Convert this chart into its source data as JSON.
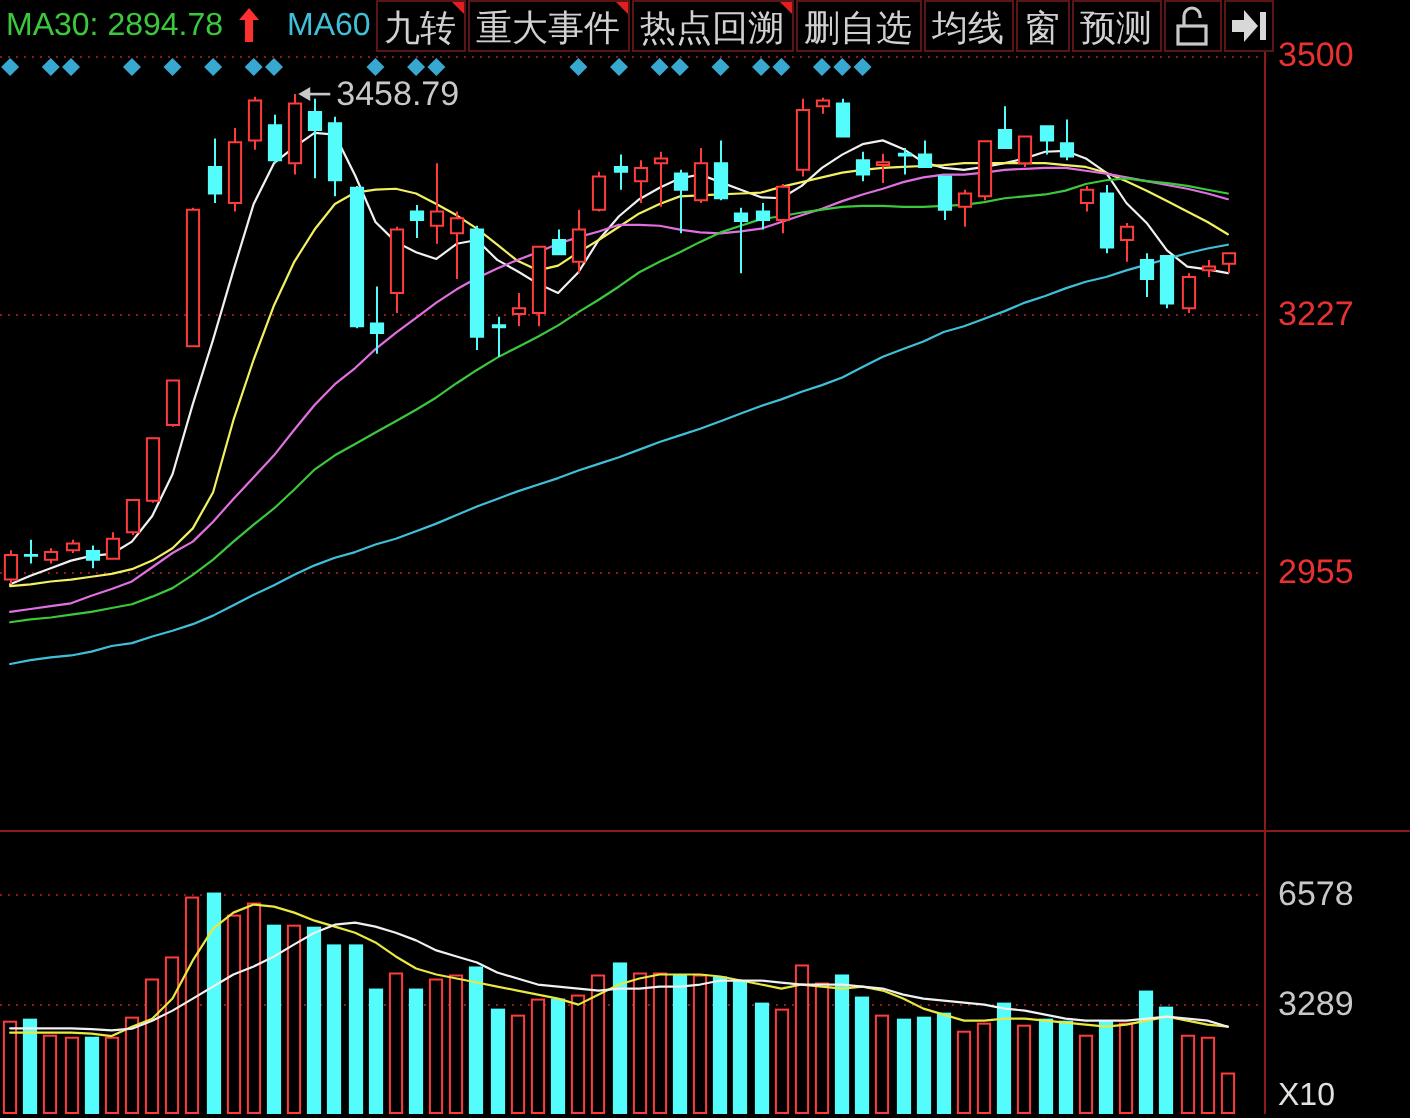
{
  "chart_data": [
    {
      "type": "candlestick",
      "categories": [
        null,
        null,
        null,
        null,
        null,
        null,
        null,
        null,
        null,
        null,
        null,
        null,
        null,
        null,
        null,
        null,
        null,
        null,
        null,
        null,
        null,
        null,
        null,
        null,
        null,
        null,
        null,
        null,
        null,
        null,
        null,
        null,
        null,
        null,
        null,
        null,
        null,
        null,
        null,
        null,
        null,
        null,
        null,
        null,
        null,
        null,
        null,
        null,
        null,
        null,
        null,
        null,
        null,
        null,
        null,
        null,
        null,
        null,
        null,
        null,
        null
      ],
      "ohlc": [
        [
          2947,
          2978,
          2942,
          2973
        ],
        [
          2973,
          2989,
          2964,
          2972
        ],
        [
          2968,
          2980,
          2964,
          2976
        ],
        [
          2978,
          2989,
          2975,
          2985
        ],
        [
          2977,
          2983,
          2959,
          2968
        ],
        [
          2969,
          2997,
          2969,
          2990
        ],
        [
          2997,
          3031,
          2994,
          3031
        ],
        [
          3030,
          3097,
          3028,
          3096
        ],
        [
          3110,
          3158,
          3108,
          3157
        ],
        [
          3193,
          3339,
          3192,
          3337
        ],
        [
          3382,
          3412,
          3344,
          3354
        ],
        [
          3344,
          3423,
          3335,
          3408
        ],
        [
          3410,
          3456,
          3400,
          3452
        ],
        [
          3426,
          3437,
          3386,
          3389
        ],
        [
          3386,
          3458.79,
          3374,
          3449
        ],
        [
          3440,
          3454,
          3370,
          3421
        ],
        [
          3428,
          3435,
          3351,
          3368
        ],
        [
          3360,
          3362,
          3212,
          3214
        ],
        [
          3217,
          3256,
          3185,
          3207
        ],
        [
          3249,
          3319,
          3228,
          3316
        ],
        [
          3335,
          3342,
          3307,
          3326
        ],
        [
          3320,
          3386,
          3301,
          3335
        ],
        [
          3312,
          3335,
          3264,
          3328
        ],
        [
          3316,
          3320,
          3189,
          3203
        ],
        [
          3215,
          3224,
          3182,
          3213
        ],
        [
          3227,
          3249,
          3214,
          3233
        ],
        [
          3228,
          3299,
          3214,
          3298
        ],
        [
          3305,
          3316,
          3289,
          3290
        ],
        [
          3282,
          3337,
          3270,
          3316
        ],
        [
          3337,
          3377,
          3335,
          3372
        ],
        [
          3382,
          3395,
          3358,
          3377
        ],
        [
          3367,
          3389,
          3344,
          3381
        ],
        [
          3386,
          3398,
          3340,
          3391
        ],
        [
          3375,
          3379,
          3312,
          3358
        ],
        [
          3347,
          3402,
          3344,
          3386
        ],
        [
          3386,
          3410,
          3347,
          3349
        ],
        [
          3333,
          3339,
          3270,
          3325
        ],
        [
          3335,
          3344,
          3316,
          3326
        ],
        [
          3326,
          3364,
          3312,
          3361
        ],
        [
          3379,
          3454,
          3372,
          3442
        ],
        [
          3446,
          3455,
          3438,
          3452
        ],
        [
          3449,
          3454,
          3414,
          3414
        ],
        [
          3389,
          3398,
          3367,
          3374
        ],
        [
          3384,
          3396,
          3365,
          3387
        ],
        [
          3396,
          3402,
          3374,
          3394
        ],
        [
          3395,
          3410,
          3382,
          3382
        ],
        [
          3372,
          3373,
          3326,
          3337
        ],
        [
          3340,
          3358,
          3319,
          3354
        ],
        [
          3351,
          3410,
          3347,
          3409
        ],
        [
          3421,
          3446,
          3402,
          3402
        ],
        [
          3386,
          3415,
          3382,
          3414
        ],
        [
          3425,
          3425,
          3395,
          3410
        ],
        [
          3407,
          3432,
          3389,
          3393
        ],
        [
          3344,
          3362,
          3335,
          3358
        ],
        [
          3354,
          3363,
          3291,
          3297
        ],
        [
          3305,
          3323,
          3282,
          3319
        ],
        [
          3284,
          3291,
          3245,
          3264
        ],
        [
          3288,
          3288,
          3233,
          3238
        ],
        [
          3233,
          3270,
          3228,
          3266
        ],
        [
          3273,
          3284,
          3266,
          3277
        ],
        [
          3280,
          3292,
          3270,
          3291
        ]
      ],
      "colors": [
        "#ff3c3c",
        "#54fcfc",
        "#ff3c3c",
        "#ff3c3c",
        "#54fcfc",
        "#ff3c3c",
        "#ff3c3c",
        "#ff3c3c",
        "#ff3c3c",
        "#ff3c3c",
        "#54fcfc",
        "#ff3c3c",
        "#ff3c3c",
        "#54fcfc",
        "#ff3c3c",
        "#54fcfc",
        "#54fcfc",
        "#54fcfc",
        "#54fcfc",
        "#ff3c3c",
        "#54fcfc",
        "#ff3c3c",
        "#ff3c3c",
        "#54fcfc",
        "#54fcfc",
        "#ff3c3c",
        "#ff3c3c",
        "#54fcfc",
        "#ff3c3c",
        "#ff3c3c",
        "#54fcfc",
        "#ff3c3c",
        "#ff3c3c",
        "#54fcfc",
        "#ff3c3c",
        "#54fcfc",
        "#54fcfc",
        "#54fcfc",
        "#ff3c3c",
        "#ff3c3c",
        "#ff3c3c",
        "#54fcfc",
        "#54fcfc",
        "#ff3c3c",
        "#54fcfc",
        "#54fcfc",
        "#54fcfc",
        "#ff3c3c",
        "#ff3c3c",
        "#54fcfc",
        "#ff3c3c",
        "#54fcfc",
        "#54fcfc",
        "#ff3c3c",
        "#54fcfc",
        "#ff3c3c",
        "#54fcfc",
        "#54fcfc",
        "#ff3c3c",
        "#ff3c3c",
        "#ff3c3c"
      ],
      "series": [
        {
          "type": "line",
          "color": "#f0f0f0",
          "values": [
            2942,
            2951,
            2959,
            2967,
            2972,
            2974,
            2987,
            3014,
            3058,
            3132,
            3200,
            3273,
            3343,
            3386,
            3403,
            3418,
            3416,
            3373,
            3324,
            3303,
            3292,
            3285,
            3301,
            3305,
            3284,
            3272,
            3259,
            3249,
            3271,
            3305,
            3330,
            3348,
            3360,
            3370,
            3374,
            3366,
            3358,
            3350,
            3349,
            3362,
            3381,
            3395,
            3406,
            3410,
            3401,
            3387,
            3381,
            3379,
            3382,
            3386,
            3391,
            3398,
            3399,
            3391,
            3376,
            3344,
            3323,
            3294,
            3277,
            3274,
            3270
          ]
        },
        {
          "type": "line",
          "color": "#f0f060",
          "values": [
            2940,
            2942,
            2945,
            2947,
            2950,
            2953,
            2958,
            2967,
            2980,
            3001,
            3039,
            3115,
            3179,
            3236,
            3282,
            3316,
            3343,
            3355,
            3358,
            3359,
            3354,
            3343,
            3331,
            3317,
            3300,
            3283,
            3273,
            3278,
            3292,
            3305,
            3319,
            3333,
            3343,
            3351,
            3352,
            3353,
            3354,
            3355,
            3361,
            3366,
            3371,
            3376,
            3379,
            3381,
            3382,
            3383,
            3384,
            3386,
            3386,
            3386,
            3386,
            3386,
            3384,
            3382,
            3376,
            3367,
            3357,
            3346,
            3335,
            3324,
            3311
          ]
        },
        {
          "type": "line",
          "color": "#e070e0",
          "values": [
            2913,
            2916,
            2919,
            2922,
            2930,
            2937,
            2945,
            2960,
            2975,
            2987,
            3008,
            3032,
            3055,
            3078,
            3105,
            3131,
            3153,
            3170,
            3190,
            3207,
            3223,
            3239,
            3253,
            3265,
            3275,
            3284,
            3292,
            3301,
            3308,
            3314,
            3321,
            3321,
            3320,
            3316,
            3313,
            3312,
            3314,
            3317,
            3324,
            3331,
            3338,
            3346,
            3353,
            3359,
            3366,
            3371,
            3374,
            3374,
            3376,
            3379,
            3380,
            3381,
            3381,
            3378,
            3375,
            3371,
            3367,
            3363,
            3359,
            3354,
            3348
          ]
        },
        {
          "type": "line",
          "name": "MA30: 2894.78",
          "color": "#3cc83c",
          "values": [
            2902,
            2905,
            2907,
            2910,
            2913,
            2917,
            2921,
            2929,
            2938,
            2952,
            2968,
            2987,
            3005,
            3022,
            3042,
            3063,
            3078,
            3090,
            3102,
            3114,
            3126,
            3139,
            3154,
            3168,
            3181,
            3192,
            3203,
            3215,
            3229,
            3242,
            3256,
            3271,
            3282,
            3292,
            3303,
            3313,
            3320,
            3327,
            3330,
            3334,
            3337,
            3340,
            3341,
            3341,
            3340,
            3340,
            3341,
            3342,
            3345,
            3349,
            3351,
            3353,
            3357,
            3364,
            3368,
            3370,
            3367,
            3365,
            3362,
            3358,
            3354
          ]
        },
        {
          "type": "line",
          "name": "MA60",
          "color": "#40c0d8",
          "values": [
            2858,
            2862,
            2865,
            2867,
            2871,
            2877,
            2880,
            2887,
            2893,
            2900,
            2909,
            2920,
            2931,
            2941,
            2952,
            2962,
            2970,
            2976,
            2984,
            2990,
            2998,
            3006,
            3015,
            3024,
            3032,
            3040,
            3047,
            3054,
            3062,
            3069,
            3076,
            3084,
            3092,
            3099,
            3106,
            3114,
            3122,
            3130,
            3137,
            3145,
            3152,
            3160,
            3171,
            3182,
            3190,
            3198,
            3208,
            3214,
            3222,
            3230,
            3239,
            3246,
            3254,
            3261,
            3266,
            3273,
            3279,
            3285,
            3291,
            3296,
            3300
          ]
        }
      ],
      "ylim": [
        2683,
        3558
      ],
      "yticks": [
        3500,
        3227,
        2955
      ],
      "grid": "y",
      "tick_labels": "y",
      "legend": "top left",
      "annotations": [
        "3458.79",
        "九转",
        "重大事件",
        "热点回溯",
        "删自选",
        "均线",
        "窗",
        "预测"
      ]
    },
    {
      "type": "bar",
      "categories": [
        null,
        null,
        null,
        null,
        null,
        null,
        null,
        null,
        null,
        null,
        null,
        null,
        null,
        null,
        null,
        null,
        null,
        null,
        null,
        null,
        null,
        null,
        null,
        null,
        null,
        null,
        null,
        null,
        null,
        null,
        null,
        null,
        null,
        null,
        null,
        null,
        null,
        null,
        null,
        null,
        null,
        null,
        null,
        null,
        null,
        null,
        null,
        null,
        null,
        null,
        null,
        null,
        null,
        null,
        null,
        null,
        null,
        null,
        null,
        null,
        null
      ],
      "series": [
        {
          "colors": [
            "#ff3c3c",
            "#54fcfc",
            "#ff3c3c",
            "#ff3c3c",
            "#54fcfc",
            "#ff3c3c",
            "#ff3c3c",
            "#ff3c3c",
            "#ff3c3c",
            "#ff3c3c",
            "#54fcfc",
            "#ff3c3c",
            "#ff3c3c",
            "#54fcfc",
            "#ff3c3c",
            "#54fcfc",
            "#54fcfc",
            "#54fcfc",
            "#54fcfc",
            "#ff3c3c",
            "#54fcfc",
            "#ff3c3c",
            "#ff3c3c",
            "#54fcfc",
            "#54fcfc",
            "#ff3c3c",
            "#ff3c3c",
            "#54fcfc",
            "#ff3c3c",
            "#ff3c3c",
            "#54fcfc",
            "#ff3c3c",
            "#ff3c3c",
            "#54fcfc",
            "#ff3c3c",
            "#54fcfc",
            "#54fcfc",
            "#54fcfc",
            "#ff3c3c",
            "#ff3c3c",
            "#ff3c3c",
            "#54fcfc",
            "#54fcfc",
            "#ff3c3c",
            "#54fcfc",
            "#54fcfc",
            "#54fcfc",
            "#ff3c3c",
            "#ff3c3c",
            "#54fcfc",
            "#ff3c3c",
            "#54fcfc",
            "#54fcfc",
            "#ff3c3c",
            "#54fcfc",
            "#ff3c3c",
            "#54fcfc",
            "#54fcfc",
            "#ff3c3c",
            "#ff3c3c",
            "#ff3c3c"
          ],
          "values": [
            2790,
            2850,
            2370,
            2310,
            2310,
            2310,
            2910,
            4050,
            4710,
            6500,
            6620,
            5960,
            6320,
            5660,
            5660,
            5600,
            5070,
            5070,
            3750,
            4230,
            3750,
            4050,
            4170,
            4410,
            3150,
            2970,
            3450,
            3450,
            3570,
            4170,
            4530,
            4230,
            4230,
            4170,
            4170,
            4110,
            3990,
            3330,
            3150,
            4470,
            3930,
            4170,
            3510,
            2970,
            2850,
            2910,
            3030,
            2490,
            2730,
            3330,
            2670,
            2850,
            2790,
            2370,
            2790,
            2730,
            3690,
            3210,
            2370,
            2310,
            1240
          ]
        },
        {
          "type": "line",
          "color": "#e8e840",
          "values": [
            2430,
            2430,
            2430,
            2430,
            2400,
            2330,
            2610,
            2850,
            3450,
            4590,
            5540,
            6020,
            6260,
            6200,
            6020,
            5780,
            5600,
            5420,
            5130,
            4710,
            4350,
            4170,
            4050,
            3930,
            3810,
            3690,
            3570,
            3450,
            3270,
            3570,
            3870,
            4050,
            4170,
            4170,
            4170,
            4110,
            3990,
            3870,
            3750,
            3870,
            3810,
            3750,
            3810,
            3690,
            3450,
            3150,
            2970,
            2790,
            2790,
            2850,
            2850,
            2790,
            2730,
            2670,
            2610,
            2670,
            2790,
            2910,
            2790,
            2670,
            2610
          ]
        },
        {
          "type": "line",
          "color": "#f0f0f0",
          "values": [
            2560,
            2560,
            2560,
            2560,
            2540,
            2500,
            2550,
            2790,
            3090,
            3450,
            3810,
            4170,
            4410,
            4710,
            5070,
            5420,
            5660,
            5720,
            5600,
            5420,
            5190,
            4890,
            4710,
            4530,
            4230,
            4050,
            3870,
            3810,
            3750,
            3690,
            3750,
            3750,
            3810,
            3810,
            3870,
            3990,
            3990,
            3990,
            3930,
            3870,
            3870,
            3870,
            3810,
            3750,
            3570,
            3450,
            3390,
            3330,
            3270,
            3150,
            3090,
            2970,
            2850,
            2790,
            2790,
            2790,
            2850,
            2910,
            2850,
            2790,
            2610
          ]
        }
      ],
      "ylim": [
        0,
        8430
      ],
      "yticks": [
        6578,
        3289
      ],
      "grid": "y",
      "tick_labels": "y",
      "annotations": [
        "X10"
      ]
    }
  ]
}
